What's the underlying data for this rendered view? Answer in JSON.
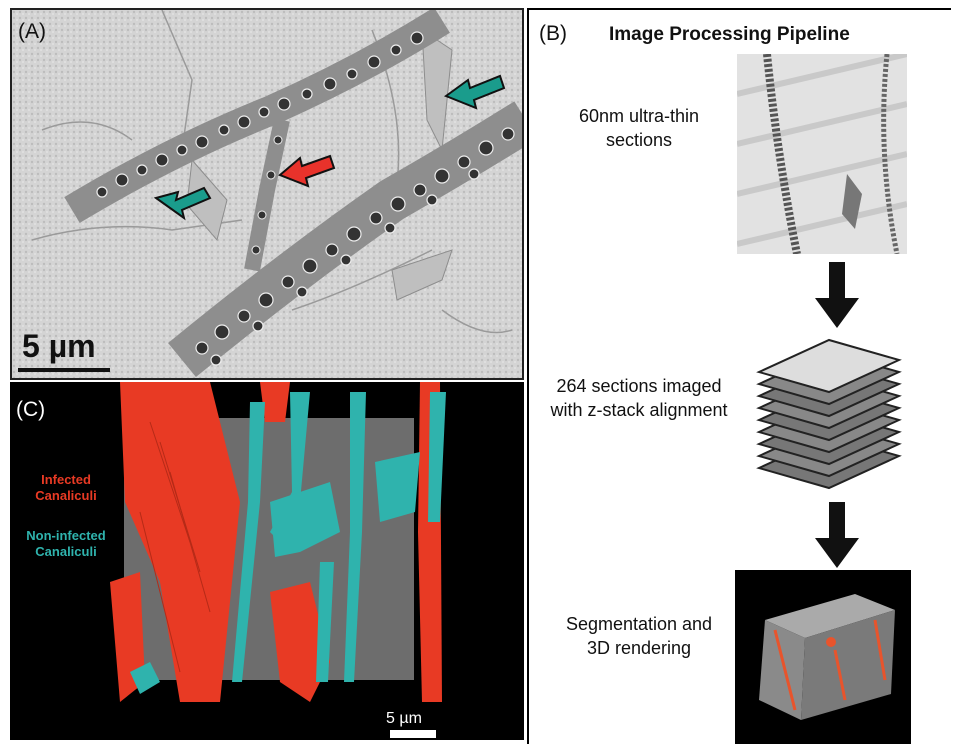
{
  "panel_a": {
    "label": "(A)",
    "scale_bar": "5 µm"
  },
  "panel_b": {
    "label": "(B)",
    "title": "Image Processing Pipeline",
    "steps": [
      {
        "text": "60nm ultra-thin sections"
      },
      {
        "text": "264 sections imaged with z-stack alignment"
      },
      {
        "text": "Segmentation and 3D rendering"
      }
    ]
  },
  "panel_c": {
    "label": "(C)",
    "legend": [
      {
        "label": "Infected Canaliculi",
        "color": "#e83a24"
      },
      {
        "label": "Non-infected Canaliculi",
        "color": "#2fb3ad"
      }
    ],
    "scale_bar": "5 µm"
  }
}
